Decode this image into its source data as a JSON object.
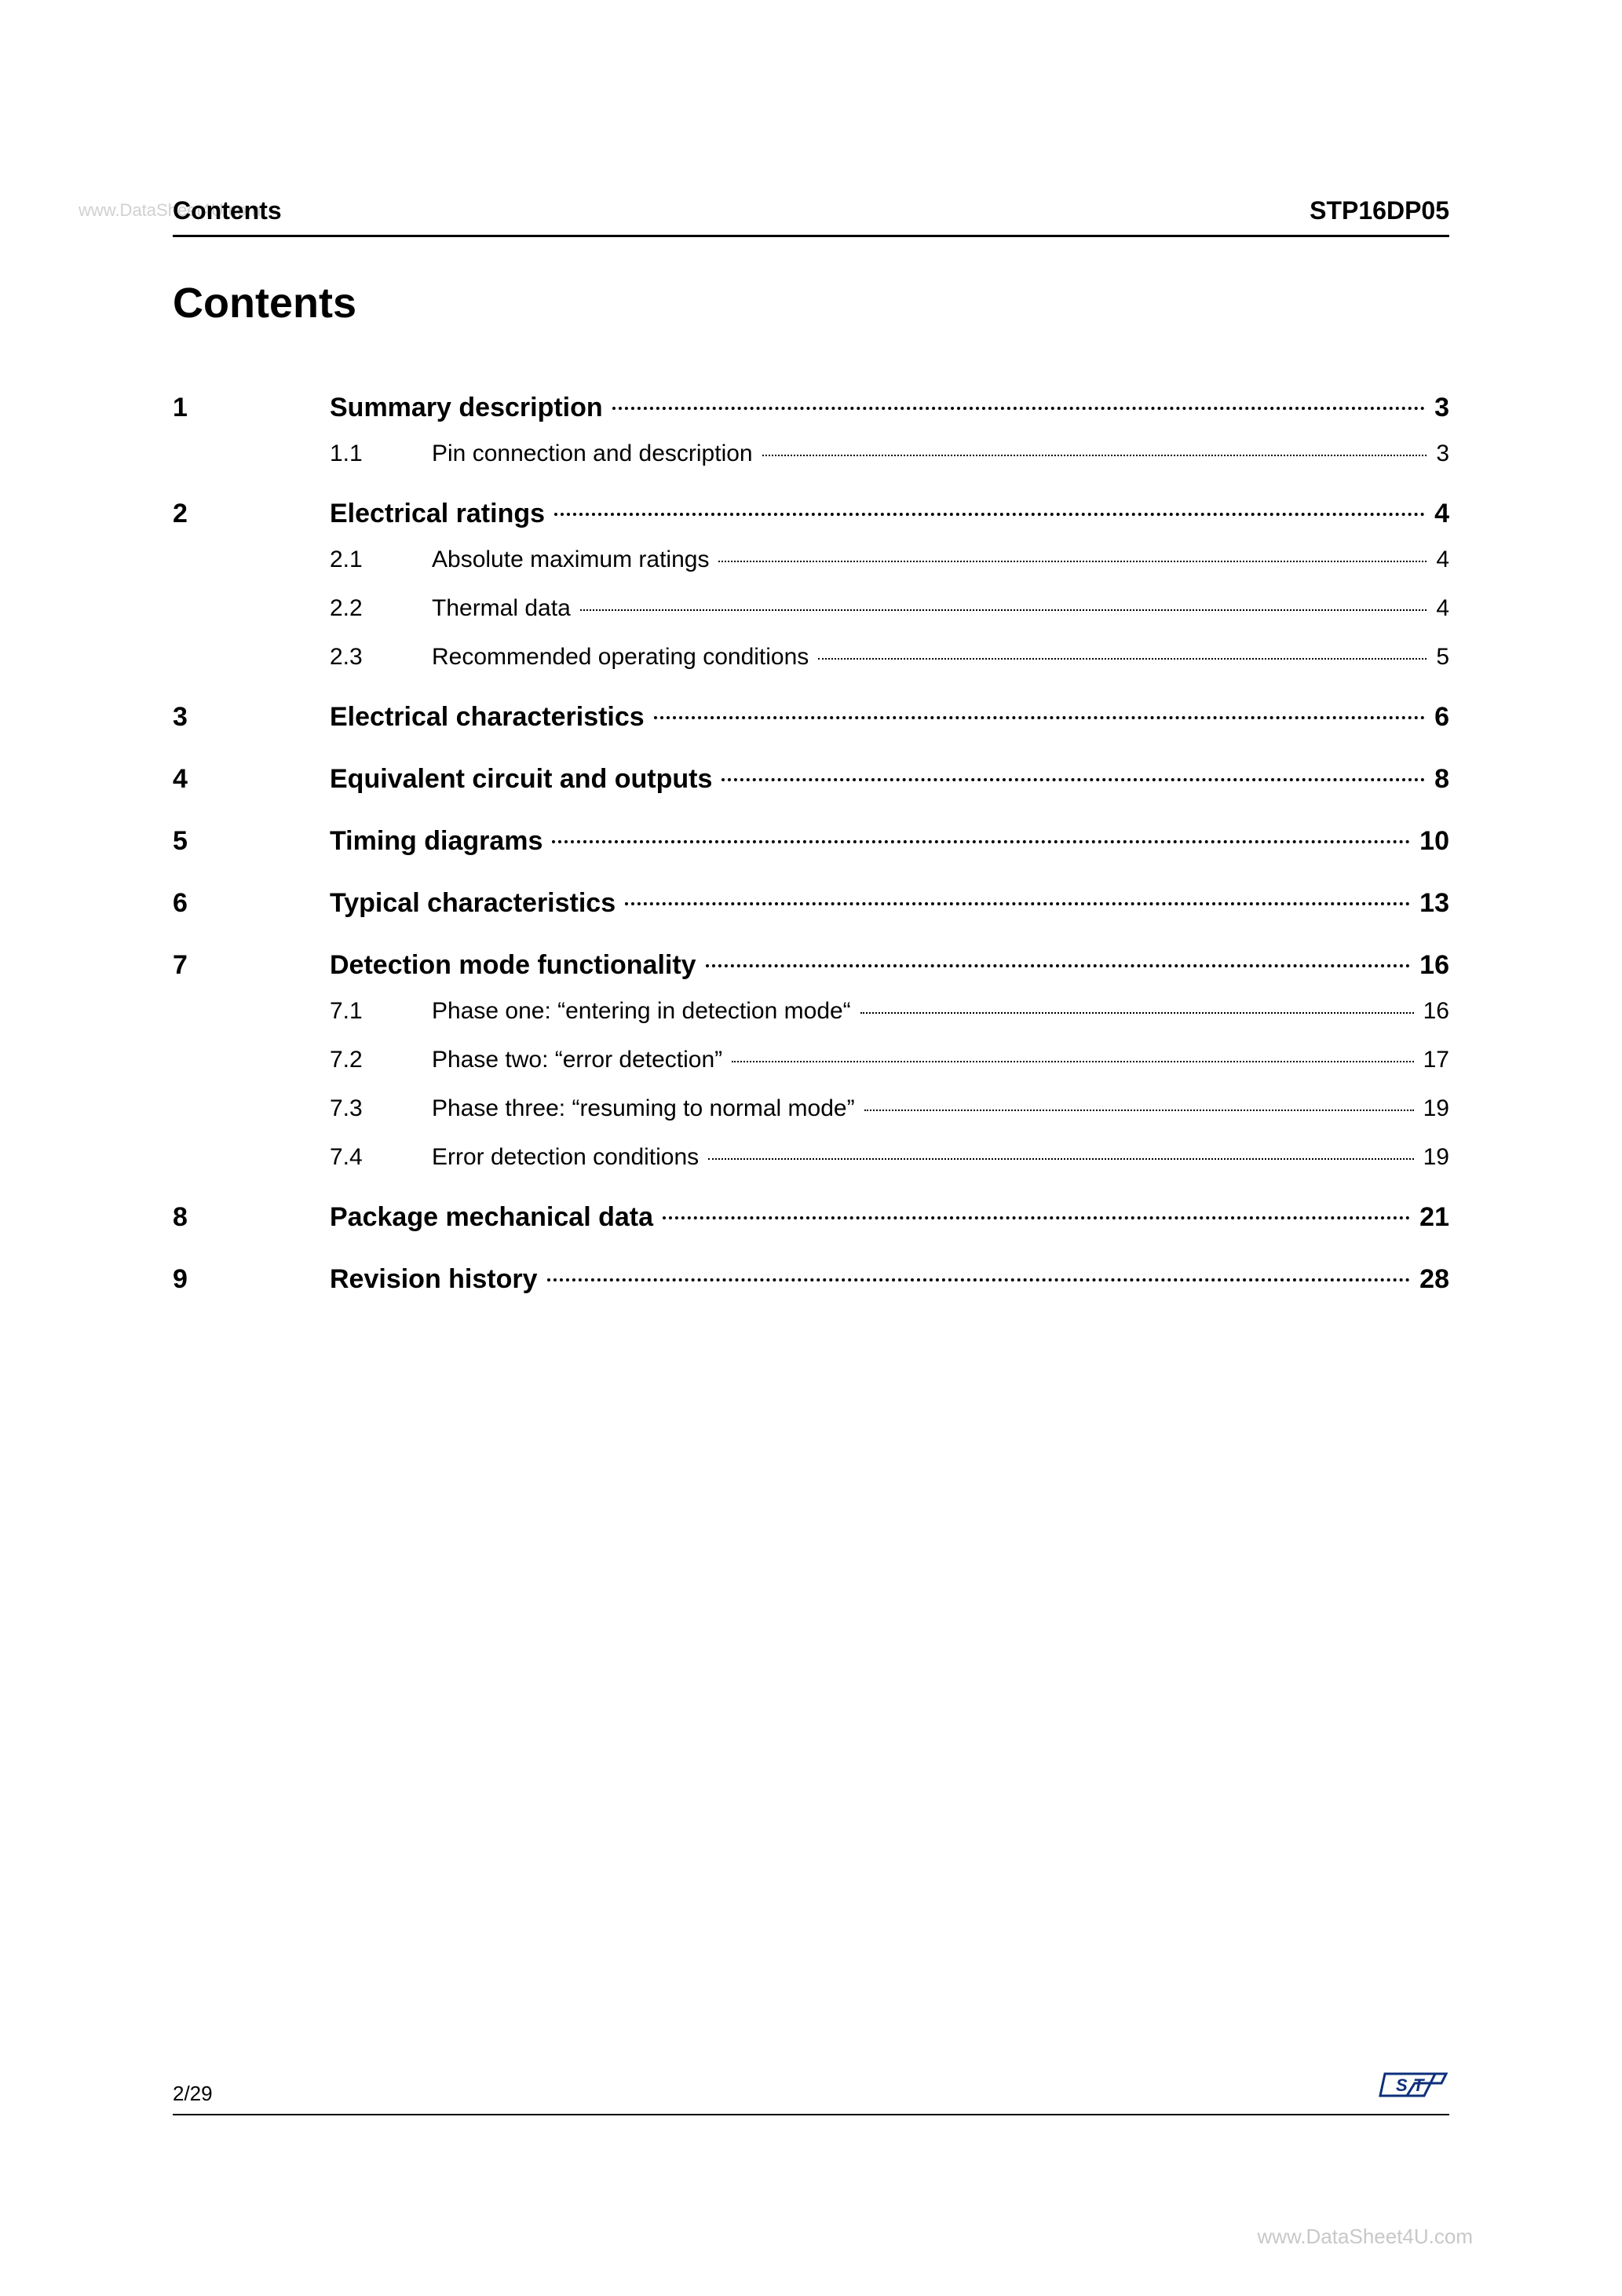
{
  "watermarks": {
    "top_left": "www.DataSheet4U.com",
    "bottom_right": "www.DataSheet4U.com"
  },
  "header": {
    "left": "Contents",
    "right": "STP16DP05"
  },
  "title": "Contents",
  "toc": [
    {
      "num": "1",
      "title": "Summary description",
      "page": "3",
      "subs": [
        {
          "num": "1.1",
          "title": "Pin connection and description",
          "page": "3"
        }
      ]
    },
    {
      "num": "2",
      "title": "Electrical ratings",
      "page": "4",
      "subs": [
        {
          "num": "2.1",
          "title": "Absolute maximum ratings",
          "page": "4"
        },
        {
          "num": "2.2",
          "title": "Thermal data",
          "page": "4"
        },
        {
          "num": "2.3",
          "title": "Recommended operating conditions",
          "page": "5"
        }
      ]
    },
    {
      "num": "3",
      "title": "Electrical characteristics",
      "page": "6",
      "subs": []
    },
    {
      "num": "4",
      "title": "Equivalent circuit and outputs",
      "page": "8",
      "subs": []
    },
    {
      "num": "5",
      "title": "Timing diagrams",
      "page": "10",
      "subs": []
    },
    {
      "num": "6",
      "title": "Typical characteristics",
      "page": "13",
      "subs": []
    },
    {
      "num": "7",
      "title": "Detection mode functionality",
      "page": "16",
      "subs": [
        {
          "num": "7.1",
          "title": "Phase one: “entering in detection mode“",
          "page": "16"
        },
        {
          "num": "7.2",
          "title": "Phase two: “error detection”",
          "page": "17"
        },
        {
          "num": "7.3",
          "title": "Phase three: “resuming to normal mode”",
          "page": "19"
        },
        {
          "num": "7.4",
          "title": "Error detection conditions",
          "page": "19"
        }
      ]
    },
    {
      "num": "8",
      "title": "Package mechanical data",
      "page": "21",
      "subs": []
    },
    {
      "num": "9",
      "title": "Revision history",
      "page": "28",
      "subs": []
    }
  ],
  "footer": {
    "page": "2/29"
  },
  "colors": {
    "text": "#000000",
    "bg": "#ffffff",
    "watermark": "#c8c8c8",
    "logo_stroke": "#0f2f7a"
  }
}
